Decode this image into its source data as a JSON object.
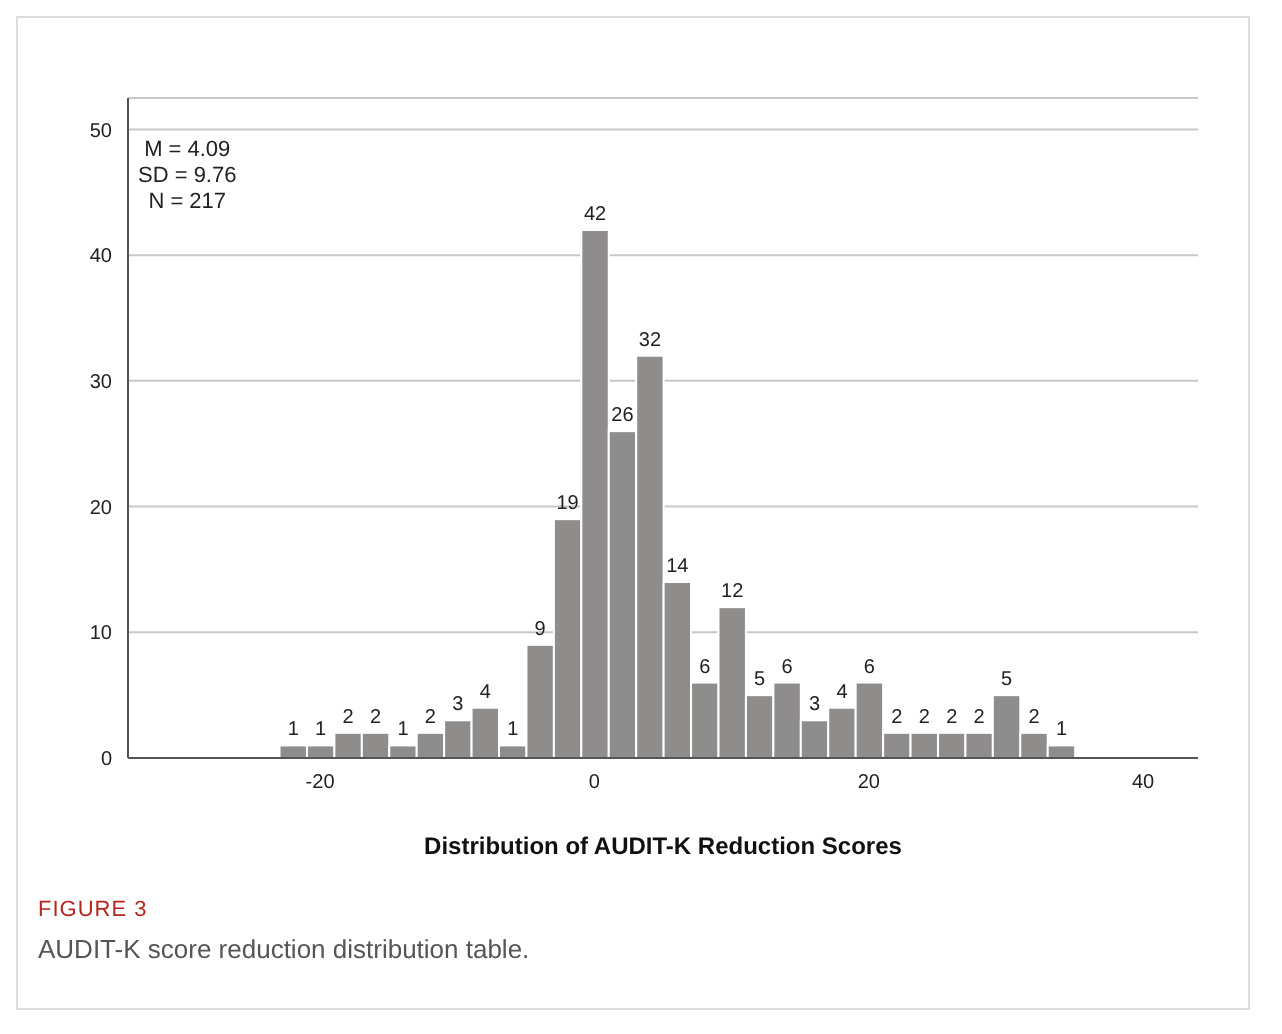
{
  "chart_data": {
    "type": "histogram",
    "xlabel": "Distribution of AUDIT-K Reduction Scores",
    "bins": [
      -23,
      -21,
      -19,
      -17,
      -15,
      -13,
      -11,
      -9,
      -7,
      -5,
      -3,
      -1,
      1,
      3,
      5,
      7,
      9,
      11,
      13,
      15,
      17,
      19,
      21,
      23,
      25,
      27,
      29,
      31,
      33,
      35
    ],
    "values": [
      1,
      1,
      2,
      2,
      1,
      2,
      3,
      4,
      1,
      9,
      19,
      42,
      26,
      32,
      14,
      6,
      12,
      5,
      6,
      3,
      4,
      6,
      2,
      2,
      2,
      2,
      5,
      2,
      1
    ],
    "color": "#8f8c8c",
    "xlim": [
      -34,
      44
    ],
    "xticks": [
      -20,
      0,
      20,
      40
    ],
    "ylim": [
      0,
      52.5
    ],
    "yticks": [
      0,
      10,
      20,
      30,
      40,
      50
    ],
    "grid": "y",
    "data_labels": true,
    "annotations": [
      "M = 4.09\nSD = 9.76\nN = 217",
      "FIGURE 3",
      "AUDIT-K score reduction distribution table."
    ]
  }
}
